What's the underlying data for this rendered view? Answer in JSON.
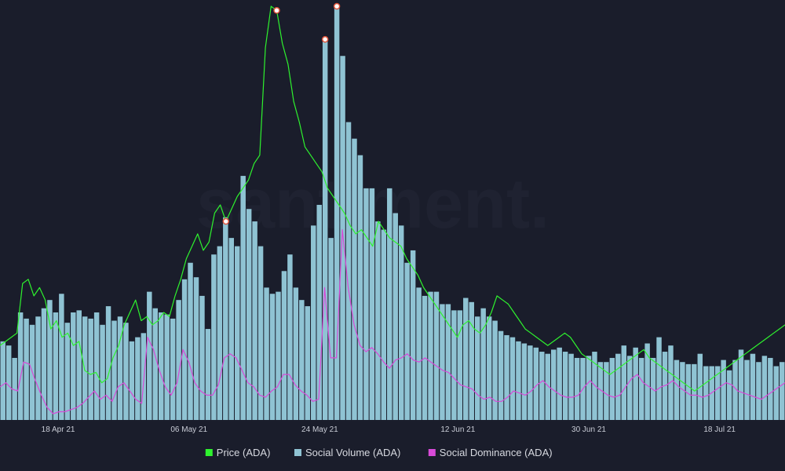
{
  "chart_data": {
    "type": "bar+line",
    "x_start": "2021-04-10",
    "x_end": "2021-07-27",
    "x_ticks": [
      "18 Apr 21",
      "06 May 21",
      "24 May 21",
      "12 Jun 21",
      "30 Jun 21",
      "18 Jul 21"
    ],
    "x_tick_dates": [
      "2021-04-18",
      "2021-05-06",
      "2021-05-24",
      "2021-06-12",
      "2021-06-30",
      "2021-07-18"
    ],
    "watermark": "santiment.",
    "series": [
      {
        "name": "Social Volume (ADA)",
        "kind": "bar",
        "color": "#8fc3d3",
        "ylim": [
          0,
          1000
        ],
        "values": [
          190,
          180,
          150,
          260,
          245,
          230,
          250,
          270,
          290,
          260,
          305,
          235,
          260,
          265,
          250,
          245,
          260,
          230,
          275,
          240,
          250,
          235,
          190,
          200,
          210,
          310,
          270,
          260,
          255,
          245,
          290,
          340,
          380,
          345,
          300,
          220,
          400,
          420,
          490,
          440,
          420,
          590,
          510,
          480,
          420,
          320,
          305,
          310,
          360,
          400,
          320,
          290,
          275,
          470,
          520,
          920,
          440,
          1000,
          880,
          720,
          680,
          640,
          560,
          560,
          480,
          460,
          560,
          500,
          470,
          380,
          410,
          320,
          300,
          310,
          310,
          280,
          280,
          265,
          265,
          295,
          285,
          250,
          270,
          250,
          240,
          215,
          205,
          200,
          190,
          185,
          180,
          175,
          165,
          160,
          170,
          175,
          165,
          160,
          150,
          150,
          155,
          165,
          140,
          140,
          150,
          160,
          180,
          155,
          175,
          150,
          185,
          150,
          200,
          165,
          180,
          145,
          140,
          135,
          135,
          160,
          130,
          130,
          130,
          145,
          120,
          145,
          170,
          145,
          160,
          140,
          155,
          150,
          130,
          140
        ]
      },
      {
        "name": "Price (ADA)",
        "kind": "line",
        "color": "#2ef22e",
        "ylim": [
          0,
          1000
        ],
        "values": [
          180,
          190,
          200,
          210,
          330,
          340,
          300,
          320,
          290,
          220,
          240,
          200,
          210,
          180,
          190,
          120,
          110,
          115,
          90,
          100,
          150,
          180,
          230,
          260,
          290,
          240,
          250,
          230,
          240,
          260,
          250,
          300,
          340,
          390,
          420,
          450,
          410,
          430,
          500,
          520,
          480,
          510,
          540,
          560,
          580,
          620,
          640,
          900,
          1000,
          990,
          910,
          860,
          770,
          720,
          660,
          640,
          620,
          600,
          560,
          540,
          520,
          500,
          470,
          450,
          460,
          440,
          420,
          480,
          460,
          440,
          430,
          420,
          390,
          370,
          350,
          320,
          300,
          280,
          260,
          240,
          220,
          200,
          230,
          240,
          220,
          210,
          230,
          260,
          300,
          290,
          280,
          260,
          240,
          220,
          210,
          200,
          190,
          180,
          190,
          200,
          210,
          200,
          180,
          160,
          150,
          140,
          130,
          120,
          110,
          120,
          130,
          140,
          150,
          160,
          170,
          150,
          140,
          130,
          120,
          110,
          100,
          90,
          80,
          70,
          80,
          90,
          100,
          110,
          120,
          130,
          140,
          150,
          160,
          170,
          180,
          190,
          200,
          210,
          220,
          230
        ]
      },
      {
        "name": "Social Dominance (ADA)",
        "kind": "line",
        "color": "#d84ad8",
        "ylim": [
          0,
          1000
        ],
        "values": [
          80,
          90,
          75,
          70,
          140,
          135,
          95,
          60,
          30,
          15,
          20,
          20,
          25,
          30,
          40,
          55,
          70,
          50,
          60,
          45,
          80,
          90,
          70,
          50,
          40,
          200,
          170,
          120,
          80,
          60,
          90,
          170,
          140,
          90,
          70,
          60,
          60,
          85,
          150,
          160,
          150,
          120,
          90,
          80,
          60,
          55,
          70,
          80,
          110,
          110,
          85,
          70,
          60,
          45,
          50,
          320,
          150,
          150,
          460,
          320,
          230,
          180,
          165,
          175,
          160,
          140,
          125,
          145,
          150,
          160,
          145,
          140,
          150,
          140,
          130,
          120,
          115,
          100,
          85,
          80,
          75,
          60,
          50,
          55,
          45,
          45,
          55,
          70,
          65,
          60,
          70,
          85,
          95,
          80,
          70,
          60,
          55,
          55,
          60,
          80,
          95,
          80,
          70,
          60,
          55,
          60,
          80,
          100,
          110,
          90,
          80,
          70,
          80,
          85,
          95,
          80,
          70,
          60,
          60,
          55,
          60,
          70,
          80,
          90,
          85,
          70,
          65,
          60,
          55,
          50,
          60,
          70,
          80,
          90
        ]
      }
    ],
    "markers": [
      {
        "series": "Price (ADA)",
        "index": 40
      },
      {
        "series": "Social Volume (ADA)",
        "index": 55
      },
      {
        "series": "Social Volume (ADA)",
        "index": 57
      },
      {
        "series": "Price (ADA)",
        "index": 49
      }
    ],
    "legend": {
      "placement": "bottom-center",
      "items": [
        {
          "label": "Price (ADA)",
          "color": "#2ef22e"
        },
        {
          "label": "Social Volume (ADA)",
          "color": "#8fc3d3"
        },
        {
          "label": "Social Dominance (ADA)",
          "color": "#d84ad8"
        }
      ]
    },
    "grid": false
  }
}
